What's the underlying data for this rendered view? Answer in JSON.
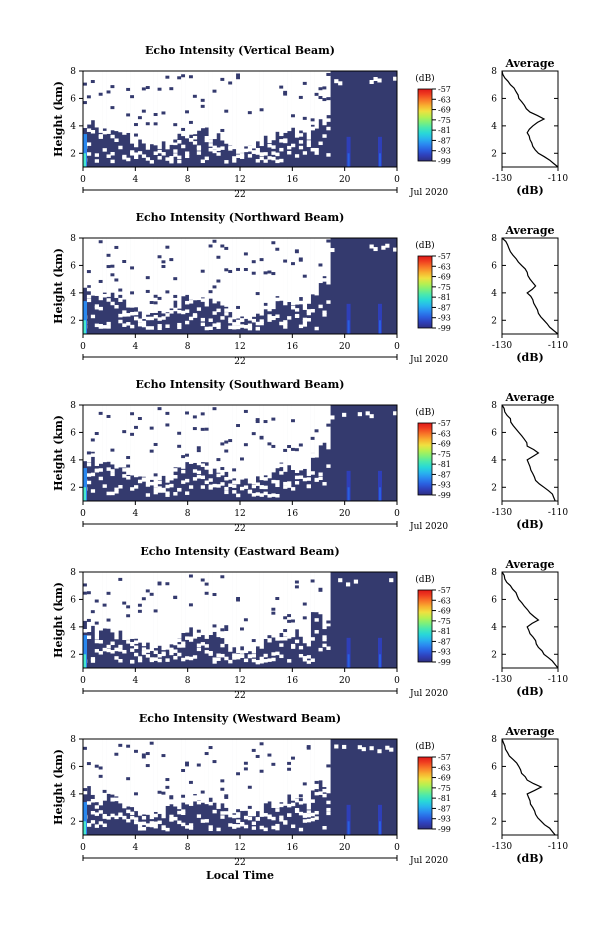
{
  "figure": {
    "xlabel": "Local Time",
    "date_label": "Jul 2020",
    "day_label": "22"
  },
  "colorscale": [
    "#2e2e80",
    "#2f3fb8",
    "#2a5fe0",
    "#2a88f0",
    "#28b4ee",
    "#28d8d8",
    "#48e8b0",
    "#7ef07a",
    "#b8f050",
    "#f0e040",
    "#f8b030",
    "#f87828",
    "#f04020",
    "#e01818"
  ],
  "chart_data": [
    {
      "type": "heatmap",
      "title": "Echo Intensity (Vertical Beam)",
      "ylabel": "Height (km)",
      "xlim": [
        0,
        24
      ],
      "ylim": [
        1,
        8
      ],
      "xticks": [
        "0",
        "4",
        "8",
        "12",
        "16",
        "20",
        "0"
      ],
      "yticks": [
        "2",
        "4",
        "6",
        "8"
      ],
      "colorbar": {
        "label": "(dB)",
        "ticks": [
          "-57",
          "-63",
          "-69",
          "-75",
          "-81",
          "-87",
          "-93",
          "-99"
        ]
      },
      "average_profile": {
        "title": "Average",
        "xlabel": "(dB)",
        "xlim": [
          -130,
          -110
        ],
        "xticks": [
          "-130",
          "-110"
        ],
        "yticks": [
          "2",
          "4",
          "6",
          "8"
        ],
        "height_km": [
          1.0,
          1.5,
          2.0,
          2.5,
          3.0,
          3.5,
          4.0,
          4.5,
          5.0,
          5.5,
          6.0,
          6.5,
          7.0,
          7.5,
          8.0
        ],
        "db": [
          -110,
          -113,
          -117,
          -119,
          -120,
          -121,
          -119,
          -115,
          -120,
          -122,
          -124,
          -125,
          -127,
          -129,
          -130
        ]
      }
    },
    {
      "type": "heatmap",
      "title": "Echo Intensity (Northward Beam)",
      "ylabel": "Height (km)",
      "xlim": [
        0,
        24
      ],
      "ylim": [
        1,
        8
      ],
      "xticks": [
        "0",
        "4",
        "8",
        "12",
        "16",
        "20",
        "0"
      ],
      "yticks": [
        "2",
        "4",
        "6",
        "8"
      ],
      "colorbar": {
        "label": "(dB)",
        "ticks": [
          "-57",
          "-63",
          "-69",
          "-75",
          "-81",
          "-87",
          "-93",
          "-99"
        ]
      },
      "average_profile": {
        "title": "Average",
        "xlabel": "(dB)",
        "xlim": [
          -130,
          -110
        ],
        "xticks": [
          "-130",
          "-110"
        ],
        "yticks": [
          "2",
          "4",
          "6",
          "8"
        ],
        "height_km": [
          1.0,
          1.5,
          2.0,
          2.5,
          3.0,
          3.5,
          4.0,
          4.5,
          5.0,
          5.5,
          6.0,
          6.5,
          7.0,
          7.5,
          8.0
        ],
        "db": [
          -110,
          -113,
          -115,
          -117,
          -118,
          -119,
          -121,
          -118,
          -120,
          -121,
          -123,
          -125,
          -127,
          -128,
          -130
        ]
      }
    },
    {
      "type": "heatmap",
      "title": "Echo Intensity (Southward Beam)",
      "ylabel": "Height (km)",
      "xlim": [
        0,
        24
      ],
      "ylim": [
        1,
        8
      ],
      "xticks": [
        "0",
        "4",
        "8",
        "12",
        "16",
        "20",
        "0"
      ],
      "yticks": [
        "2",
        "4",
        "6",
        "8"
      ],
      "colorbar": {
        "label": "(dB)",
        "ticks": [
          "-57",
          "-63",
          "-69",
          "-75",
          "-81",
          "-87",
          "-93",
          "-99"
        ]
      },
      "average_profile": {
        "title": "Average",
        "xlabel": "(dB)",
        "xlim": [
          -130,
          -110
        ],
        "xticks": [
          "-130",
          "-110"
        ],
        "yticks": [
          "2",
          "4",
          "6",
          "8"
        ],
        "height_km": [
          1.0,
          1.5,
          2.0,
          2.5,
          3.0,
          3.5,
          4.0,
          4.5,
          5.0,
          5.5,
          6.0,
          6.5,
          7.0,
          7.5,
          8.0
        ],
        "db": [
          -111,
          -112,
          -115,
          -118,
          -119,
          -120,
          -121,
          -117,
          -121,
          -122,
          -124,
          -126,
          -127,
          -129,
          -130
        ]
      }
    },
    {
      "type": "heatmap",
      "title": "Echo Intensity (Eastward Beam)",
      "ylabel": "Height (km)",
      "xlim": [
        0,
        24
      ],
      "ylim": [
        1,
        8
      ],
      "xticks": [
        "0",
        "4",
        "8",
        "12",
        "16",
        "20",
        "0"
      ],
      "yticks": [
        "2",
        "4",
        "6",
        "8"
      ],
      "colorbar": {
        "label": "(dB)",
        "ticks": [
          "-57",
          "-63",
          "-69",
          "-75",
          "-81",
          "-87",
          "-93",
          "-99"
        ]
      },
      "average_profile": {
        "title": "Average",
        "xlabel": "(dB)",
        "xlim": [
          -130,
          -110
        ],
        "xticks": [
          "-130",
          "-110"
        ],
        "yticks": [
          "2",
          "4",
          "6",
          "8"
        ],
        "height_km": [
          1.0,
          1.5,
          2.0,
          2.5,
          3.0,
          3.5,
          4.0,
          4.5,
          5.0,
          5.5,
          6.0,
          6.5,
          7.0,
          7.5,
          8.0
        ],
        "db": [
          -110,
          -112,
          -115,
          -117,
          -118,
          -120,
          -121,
          -117,
          -120,
          -122,
          -124,
          -125,
          -127,
          -129,
          -130
        ]
      }
    },
    {
      "type": "heatmap",
      "title": "Echo Intensity (Westward Beam)",
      "ylabel": "Height (km)",
      "xlim": [
        0,
        24
      ],
      "ylim": [
        1,
        8
      ],
      "xticks": [
        "0",
        "4",
        "8",
        "12",
        "16",
        "20",
        "0"
      ],
      "yticks": [
        "2",
        "4",
        "6",
        "8"
      ],
      "colorbar": {
        "label": "(dB)",
        "ticks": [
          "-57",
          "-63",
          "-69",
          "-75",
          "-81",
          "-87",
          "-93",
          "-99"
        ]
      },
      "average_profile": {
        "title": "Average",
        "xlabel": "(dB)",
        "xlim": [
          -130,
          -110
        ],
        "xticks": [
          "-130",
          "-110"
        ],
        "yticks": [
          "2",
          "4",
          "6",
          "8"
        ],
        "height_km": [
          1.0,
          1.5,
          2.0,
          2.5,
          3.0,
          3.5,
          4.0,
          4.5,
          5.0,
          5.5,
          6.0,
          6.5,
          7.0,
          7.5,
          8.0
        ],
        "db": [
          -111,
          -113,
          -116,
          -118,
          -119,
          -120,
          -121,
          -116,
          -121,
          -123,
          -124,
          -126,
          -128,
          -129,
          -130
        ]
      }
    }
  ]
}
